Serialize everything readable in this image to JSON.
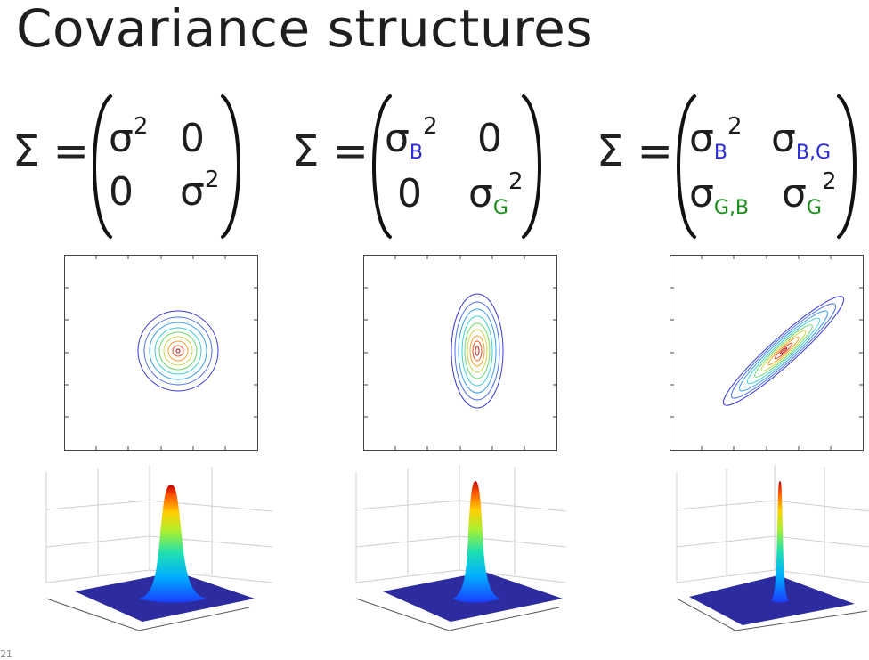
{
  "title": "Covariance structures",
  "equations": [
    {
      "lhs": "Σ =",
      "cells": [
        {
          "base": "σ",
          "sub": "",
          "sup": "2"
        },
        {
          "base": "0",
          "sub": "",
          "sup": ""
        },
        {
          "base": "0",
          "sub": "",
          "sup": ""
        },
        {
          "base": "σ",
          "sub": "",
          "sup": "2"
        }
      ]
    },
    {
      "lhs": "Σ =",
      "cells": [
        {
          "base": "σ",
          "sub": "B",
          "sup": "2"
        },
        {
          "base": "0",
          "sub": "",
          "sup": ""
        },
        {
          "base": "0",
          "sub": "",
          "sup": ""
        },
        {
          "base": "σ",
          "sub": "G",
          "sup": "2"
        }
      ]
    },
    {
      "lhs": "Σ =",
      "cells": [
        {
          "base": "σ",
          "sub": "B",
          "sup": "2"
        },
        {
          "base": "σ",
          "sub": "B,G",
          "sup": ""
        },
        {
          "base": "σ",
          "sub": "G,B",
          "sup": ""
        },
        {
          "base": "σ",
          "sub": "G",
          "sup": "2"
        }
      ]
    }
  ],
  "colors": {
    "sub_B": "#2a2adc",
    "sub_G": "#1a8f1a",
    "contour_levels": [
      "#3a3ad8",
      "#4a6ef0",
      "#3aa0f0",
      "#3cd0d0",
      "#6ad86a",
      "#c8d848",
      "#f0a030",
      "#e85020",
      "#c01818"
    ],
    "surface_base": "#2c2ca0"
  },
  "contour_plots": [
    {
      "shape": "isotropic circle"
    },
    {
      "shape": "axis-aligned vertical ellipse"
    },
    {
      "shape": "tilted ellipse"
    }
  ],
  "surface_plots": [
    {
      "shape": "wide isotropic gaussian"
    },
    {
      "shape": "narrower elongated gaussian"
    },
    {
      "shape": "thin ridge gaussian"
    }
  ],
  "slide_number": "21"
}
